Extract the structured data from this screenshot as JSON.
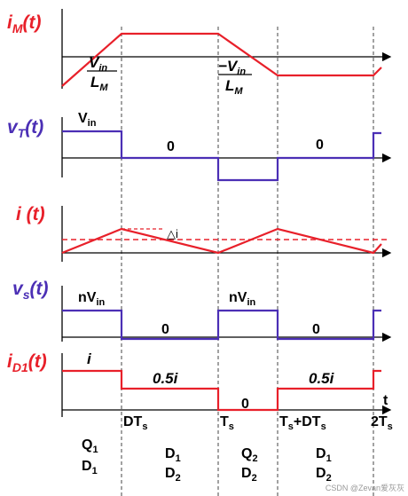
{
  "plots": [
    {
      "var": "i",
      "sub": "M",
      "arg": "(t)"
    },
    {
      "var": "v",
      "sub": "T",
      "arg": "(t)"
    },
    {
      "var": "i",
      "arg": " (t)"
    },
    {
      "var": "v",
      "sub": "s",
      "arg": "(t)"
    },
    {
      "var": "i",
      "sub": "D1",
      "arg": "(t)"
    }
  ],
  "slope_up": {
    "num": "V",
    "num_sub": "in",
    "den": "L",
    "den_sub": "M"
  },
  "slope_down": {
    "num": "−V",
    "num_sub": "in",
    "den": "L",
    "den_sub": "M"
  },
  "vt_labels": {
    "high": "V",
    "high_sub": "in",
    "zero1": "0",
    "zero2": "0"
  },
  "ripple": "△i",
  "vs_labels": {
    "high1": "nV",
    "high1_sub": "in",
    "zero1": "0",
    "high2": "nV",
    "high2_sub": "in",
    "zero2": "0"
  },
  "id_labels": {
    "full": "i",
    "half1": "0.5i",
    "zero": "0",
    "half2": "0.5i",
    "axis": "t"
  },
  "times": [
    {
      "main": "DT",
      "sub": "s"
    },
    {
      "main": "T",
      "sub": "s"
    },
    {
      "main": "T",
      "sub": "s",
      "rest": "+DT",
      "rest_sub": "s"
    },
    {
      "main": "2T",
      "sub": "s"
    }
  ],
  "intervals": [
    [
      {
        "main": "Q",
        "sub": "1"
      },
      {
        "main": "D",
        "sub": "1"
      }
    ],
    [
      {
        "main": "D",
        "sub": "1"
      },
      {
        "main": "D",
        "sub": "2"
      }
    ],
    [
      {
        "main": "Q",
        "sub": "2"
      },
      {
        "main": "D",
        "sub": "2"
      }
    ],
    [
      {
        "main": "D",
        "sub": "1"
      },
      {
        "main": "D",
        "sub": "2"
      }
    ]
  ],
  "watermark": "CSDN @Zevan爱灰灰"
}
